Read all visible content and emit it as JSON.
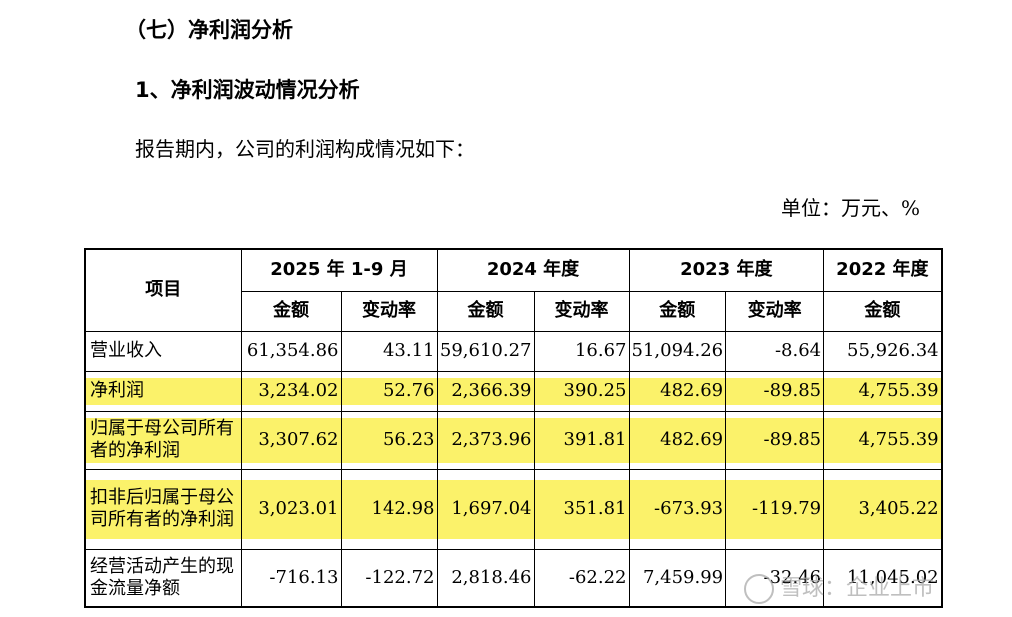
{
  "heading_section": "（七）净利润分析",
  "heading_sub": "1、净利润波动情况分析",
  "intro": "报告期内，公司的利润构成情况如下：",
  "unit": "单位：万元、%",
  "table": {
    "col_item": "项目",
    "periods": [
      "2025 年 1-9 月",
      "2024 年度",
      "2023 年度",
      "2022 年度"
    ],
    "sub_amount": "金额",
    "sub_change": "变动率",
    "rows": [
      {
        "label": "营业收入",
        "values": [
          "61,354.86",
          "43.11",
          "59,610.27",
          "16.67",
          "51,094.26",
          "-8.64",
          "55,926.34"
        ]
      },
      {
        "label": "净利润",
        "values": [
          "3,234.02",
          "52.76",
          "2,366.39",
          "390.25",
          "482.69",
          "-89.85",
          "4,755.39"
        ]
      },
      {
        "label": "归属于母公司所有者的净利润",
        "values": [
          "3,307.62",
          "56.23",
          "2,373.96",
          "391.81",
          "482.69",
          "-89.85",
          "4,755.39"
        ]
      },
      {
        "label": "扣非后归属于母公司所有者的净利润",
        "values": [
          "3,023.01",
          "142.98",
          "1,697.04",
          "351.81",
          "-673.93",
          "-119.79",
          "3,405.22"
        ]
      },
      {
        "label": "经营活动产生的现金流量净额",
        "values": [
          "-716.13",
          "-122.72",
          "2,818.46",
          "-62.22",
          "7,459.99",
          "-32.46",
          "11,045.02"
        ]
      }
    ]
  },
  "highlight_color": "#fbf26a",
  "watermark": "雪球：企业上市"
}
